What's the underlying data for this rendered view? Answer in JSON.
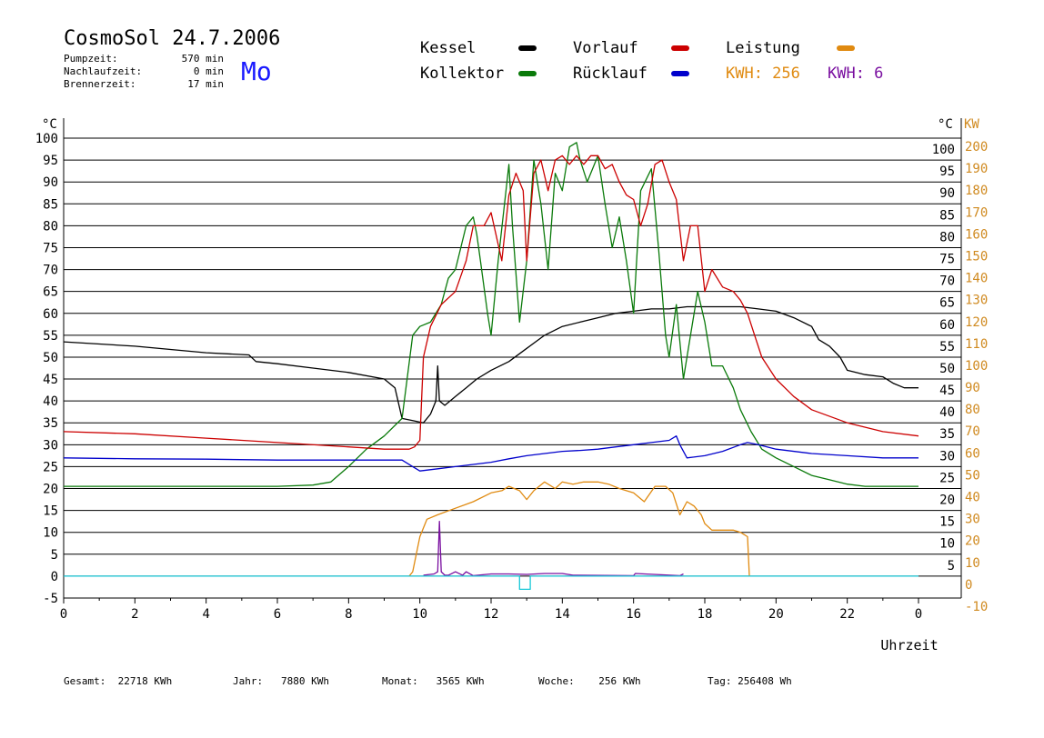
{
  "header": {
    "title": "CosmoSol 24.7.2006",
    "pumpzeit_label": "Pumpzeit:",
    "pumpzeit_value": "570 min",
    "nachlaufzeit_label": "Nachlaufzeit:",
    "nachlaufzeit_value": "0 min",
    "brennerzeit_label": "Brennerzeit:",
    "brennerzeit_value": "17 min",
    "day": "Mo"
  },
  "legend": {
    "kessel": "Kessel",
    "kollektor": "Kollektor",
    "vorlauf": "Vorlauf",
    "ruecklauf": "Rücklauf",
    "leistung": "Leistung",
    "kwh_orange": "KWH: 256",
    "kwh_purple": "KWH: 6"
  },
  "colors": {
    "kessel": "#000000",
    "kollektor": "#0a7a0a",
    "vorlauf": "#cc0000",
    "ruecklauf": "#0000cc",
    "leistung": "#e08a10",
    "purple": "#7a10a0",
    "brenner": "#18c8d8",
    "right_axis": "#d08a20",
    "day": "#1a1aff"
  },
  "footer": {
    "gesamt_label": "Gesamt:",
    "gesamt_value": "22718 KWh",
    "jahr_label": "Jahr:",
    "jahr_value": "7880 KWh",
    "monat_label": "Monat:",
    "monat_value": "3565 KWh",
    "woche_label": "Woche:",
    "woche_value": "256 KWh",
    "tag_label": "Tag:",
    "tag_value": "256408 Wh"
  },
  "chart_data": {
    "type": "line",
    "xlabel": "Uhrzeit",
    "ylabel_left": "°C",
    "ylabel_right_1": "°C",
    "ylabel_right_2": "KW",
    "xlim": [
      0,
      24
    ],
    "ylim": [
      -5,
      100
    ],
    "ylim_right_kw": [
      -10,
      200
    ],
    "grid": true,
    "x_ticks": [
      "0",
      "2",
      "4",
      "6",
      "8",
      "10",
      "12",
      "14",
      "16",
      "18",
      "20",
      "22",
      "0"
    ],
    "y_ticks_left": [
      "100",
      "95",
      "90",
      "85",
      "80",
      "75",
      "70",
      "65",
      "60",
      "55",
      "50",
      "45",
      "40",
      "35",
      "30",
      "25",
      "20",
      "15",
      "10",
      "5",
      "0",
      "-5"
    ],
    "y_ticks_right": [
      "100",
      "95",
      "90",
      "85",
      "80",
      "75",
      "70",
      "65",
      "60",
      "55",
      "50",
      "45",
      "40",
      "35",
      "30",
      "25",
      "20",
      "15",
      "10",
      "5"
    ],
    "y_ticks_right_kw": [
      "200",
      "190",
      "180",
      "170",
      "160",
      "150",
      "140",
      "130",
      "120",
      "110",
      "100",
      "90",
      "80",
      "70",
      "60",
      "50",
      "40",
      "30",
      "20",
      "10",
      "0",
      "-10"
    ],
    "series": [
      {
        "name": "Kessel",
        "color": "#000000",
        "x": [
          0,
          2,
          4,
          5.2,
          5.4,
          6,
          7,
          8,
          9,
          9.3,
          9.5,
          9.8,
          10.1,
          10.3,
          10.45,
          10.5,
          10.55,
          10.7,
          11,
          11.3,
          11.6,
          12,
          12.5,
          13,
          13.5,
          14,
          14.5,
          15,
          15.5,
          16,
          16.5,
          17,
          17.5,
          18,
          18.5,
          19,
          19.5,
          20,
          20.5,
          21,
          21.2,
          21.5,
          21.8,
          22,
          22.5,
          23,
          23.3,
          23.6,
          24
        ],
        "y": [
          53.5,
          52.5,
          51,
          50.5,
          49,
          48.5,
          47.5,
          46.5,
          45,
          43,
          36,
          35.5,
          35,
          37,
          40,
          48,
          40,
          39,
          41,
          43,
          45,
          47,
          49,
          52,
          55,
          57,
          58,
          59,
          60,
          60.5,
          61,
          61,
          61.5,
          61.5,
          61.5,
          61.5,
          61,
          60.5,
          59,
          57,
          54,
          52.5,
          50,
          47,
          46,
          45.5,
          44,
          43,
          43
        ]
      },
      {
        "name": "Kollektor",
        "color": "#0a7a0a",
        "x": [
          0,
          1,
          2,
          3,
          4,
          5,
          6,
          7,
          7.5,
          8,
          8.5,
          9,
          9.5,
          9.8,
          10,
          10.3,
          10.6,
          10.8,
          11,
          11.3,
          11.5,
          11.6,
          11.7,
          11.9,
          12,
          12.2,
          12.5,
          12.6,
          12.8,
          13,
          13.2,
          13.4,
          13.6,
          13.8,
          14,
          14.2,
          14.4,
          14.5,
          14.7,
          15,
          15.2,
          15.4,
          15.6,
          15.8,
          16,
          16.2,
          16.5,
          16.7,
          16.9,
          17,
          17.2,
          17.4,
          17.6,
          17.8,
          18,
          18.2,
          18.5,
          18.8,
          19,
          19.3,
          19.6,
          20,
          20.5,
          21,
          21.5,
          22,
          22.5,
          23,
          23.5,
          24
        ],
        "y": [
          20.5,
          20.5,
          20.5,
          20.5,
          20.5,
          20.5,
          20.5,
          20.8,
          21.5,
          25,
          29,
          32,
          36,
          55,
          57,
          58,
          62,
          68,
          70,
          80,
          82,
          78,
          72,
          60,
          55,
          72,
          94,
          80,
          58,
          72,
          95,
          85,
          70,
          92,
          88,
          98,
          99,
          95,
          90,
          96,
          85,
          75,
          82,
          72,
          60,
          88,
          93,
          75,
          55,
          50,
          62,
          45,
          55,
          65,
          58,
          48,
          48,
          43,
          38,
          33,
          29,
          27,
          25,
          23,
          22,
          21,
          20.5,
          20.5,
          20.5,
          20.5
        ]
      },
      {
        "name": "Vorlauf",
        "color": "#cc0000",
        "x": [
          0,
          2,
          4,
          6,
          8,
          9,
          9.7,
          9.85,
          10,
          10.1,
          10.3,
          10.6,
          11,
          11.3,
          11.5,
          11.8,
          12,
          12.3,
          12.5,
          12.7,
          12.9,
          13,
          13.2,
          13.4,
          13.6,
          13.8,
          14,
          14.2,
          14.4,
          14.6,
          14.8,
          15,
          15.2,
          15.4,
          15.6,
          15.8,
          16,
          16.2,
          16.4,
          16.6,
          16.8,
          17,
          17.2,
          17.4,
          17.6,
          17.8,
          18,
          18.2,
          18.5,
          18.8,
          19,
          19.2,
          19.4,
          19.6,
          20,
          20.5,
          21,
          22,
          23,
          24
        ],
        "y": [
          33,
          32.5,
          31.5,
          30.5,
          29.5,
          29,
          29,
          29.5,
          31,
          50,
          57,
          62,
          65,
          72,
          80,
          80,
          83,
          72,
          87,
          92,
          88,
          72,
          92,
          95,
          88,
          95,
          96,
          94,
          96,
          94,
          96,
          96,
          93,
          94,
          90,
          87,
          86,
          80,
          85,
          94,
          95,
          90,
          86,
          72,
          80,
          80,
          65,
          70,
          66,
          65,
          63,
          60,
          55,
          50,
          45,
          41,
          38,
          35,
          33,
          32
        ]
      },
      {
        "name": "Rücklauf",
        "color": "#0000cc",
        "x": [
          0,
          2,
          4,
          6,
          8,
          9.5,
          9.8,
          10,
          10.5,
          11,
          11.5,
          12,
          12.5,
          13,
          13.5,
          14,
          14.5,
          15,
          15.5,
          16,
          16.5,
          17,
          17.2,
          17.3,
          17.5,
          18,
          18.5,
          19,
          19.2,
          19.5,
          20,
          21,
          22,
          23,
          24
        ],
        "y": [
          27,
          26.8,
          26.7,
          26.5,
          26.5,
          26.5,
          25,
          24,
          24.5,
          25,
          25.5,
          26,
          26.8,
          27.5,
          28,
          28.5,
          28.7,
          29,
          29.5,
          30,
          30.5,
          31,
          32,
          30,
          27,
          27.5,
          28.5,
          30,
          30.5,
          30,
          29,
          28,
          27.5,
          27,
          27
        ]
      },
      {
        "name": "Leistung",
        "color": "#e08a10",
        "x": [
          9.7,
          9.8,
          10,
          10.2,
          10.5,
          11,
          11.5,
          12,
          12.3,
          12.5,
          12.8,
          13,
          13.2,
          13.5,
          13.8,
          14,
          14.3,
          14.6,
          15,
          15.3,
          15.6,
          16,
          16.3,
          16.6,
          16.9,
          17.1,
          17.3,
          17.5,
          17.7,
          17.9,
          18,
          18.2,
          18.5,
          18.8,
          19,
          19.1,
          19.2,
          19.25
        ],
        "y": [
          0,
          1,
          9,
          13,
          14,
          15.5,
          17,
          19,
          19.5,
          20.5,
          19.5,
          17.5,
          19.5,
          21.5,
          20,
          21.5,
          21,
          21.5,
          21.5,
          21,
          20,
          19,
          17,
          20.5,
          20.5,
          19,
          14,
          17,
          16,
          14,
          12,
          10.5,
          10.5,
          10.5,
          10,
          9.5,
          9,
          0
        ]
      },
      {
        "name": "Leistung2",
        "color": "#7a10a0",
        "x": [
          10.1,
          10.4,
          10.5,
          10.55,
          10.6,
          10.7,
          10.8,
          11,
          11.2,
          11.3,
          11.5,
          12,
          12.5,
          13,
          13.5,
          14,
          14.3,
          16,
          16.05,
          17.3,
          17.4
        ],
        "y": [
          0.2,
          0.5,
          1,
          12.5,
          1,
          0.2,
          0.2,
          1,
          0.2,
          1,
          0.1,
          0.5,
          0.5,
          0.4,
          0.6,
          0.6,
          0.2,
          0.1,
          0.6,
          0.1,
          0.5
        ]
      },
      {
        "name": "Brenner",
        "color": "#18c8d8",
        "x": [
          0,
          12.8,
          12.8,
          13.1,
          13.1,
          24
        ],
        "y": [
          0,
          0,
          -3,
          -3,
          0,
          0
        ]
      }
    ]
  }
}
